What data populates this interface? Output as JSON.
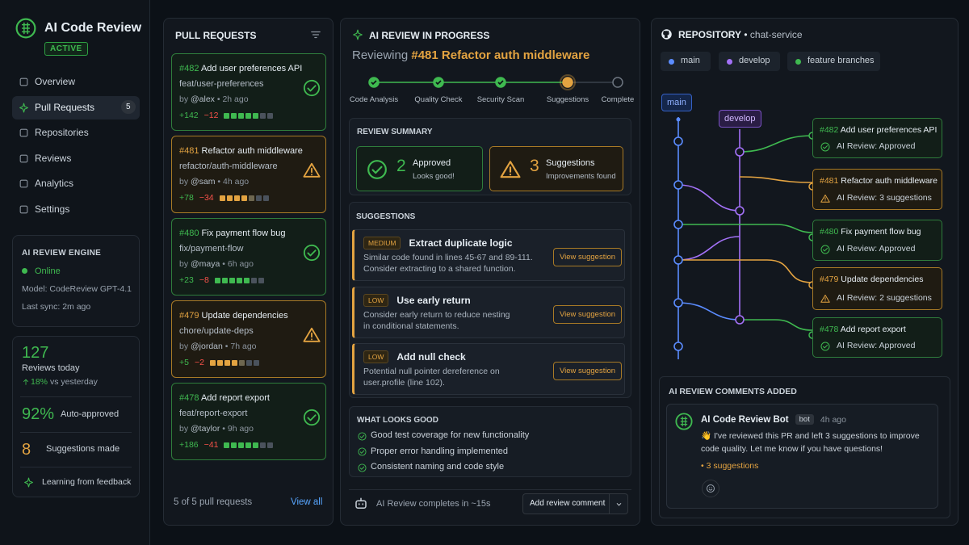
{
  "sidebar": {
    "brand": "AI Code Review",
    "badge": "ACTIVE",
    "nav": [
      {
        "label": "Overview"
      },
      {
        "label": "Pull Requests",
        "count": "5"
      },
      {
        "label": "Repositories"
      },
      {
        "label": "Reviews"
      },
      {
        "label": "Analytics"
      },
      {
        "label": "Settings"
      }
    ],
    "engine": {
      "title": "AI REVIEW ENGINE",
      "status": "Online",
      "model": "Model: CodeReview GPT-4.1",
      "sync": "Last sync: 2m ago"
    },
    "stats": {
      "reviews": "127",
      "reviews_label": "Reviews today",
      "trend_value": "18%",
      "trend_label": "vs yesterday",
      "auto": "92%",
      "auto_label": "Auto-approved",
      "suggestions": "8",
      "suggestions_label": "Suggestions made",
      "learning": "Learning from feedback"
    }
  },
  "pull_requests": {
    "title": "PULL REQUESTS",
    "by": "by",
    "items": [
      {
        "number": "#482",
        "title": "Add user preferences API",
        "branch": "feat/user-preferences",
        "author": "@alex",
        "time": "2h ago",
        "additions": "+142",
        "deletions": "−12",
        "icon": "check"
      },
      {
        "number": "#481",
        "title": "Refactor auth middleware",
        "branch": "refactor/auth-middleware",
        "author": "@sam",
        "time": "4h ago",
        "additions": "+78",
        "deletions": "−34",
        "icon": "warning"
      },
      {
        "number": "#480",
        "title": "Fix payment flow bug",
        "branch": "fix/payment-flow",
        "author": "@maya",
        "time": "6h ago",
        "additions": "+23",
        "deletions": "−8",
        "icon": "check"
      },
      {
        "number": "#479",
        "title": "Update dependencies",
        "branch": "chore/update-deps",
        "author": "@jordan",
        "time": "7h ago",
        "additions": "+5",
        "deletions": "−2",
        "icon": "warning"
      },
      {
        "number": "#478",
        "title": "Add report export",
        "branch": "feat/report-export",
        "author": "@taylor",
        "time": "9h ago",
        "additions": "+186",
        "deletions": "−41",
        "icon": "check"
      }
    ],
    "footer": "5 of 5 pull requests",
    "link": "View all"
  },
  "review": {
    "title": "AI REVIEW IN PROGRESS",
    "reviewing": "Reviewing",
    "number": "#481",
    "pr_title": "Refactor auth middleware",
    "steps": [
      {
        "label": "Code Analysis",
        "state": "done"
      },
      {
        "label": "Quality Check",
        "state": "done"
      },
      {
        "label": "Security Scan",
        "state": "done"
      },
      {
        "label": "Suggestions",
        "state": "current"
      },
      {
        "label": "Complete",
        "state": "todo"
      }
    ],
    "summary": {
      "title": "REVIEW SUMMARY",
      "cards": [
        {
          "count": "2",
          "label": "Approved",
          "sub": "Looks good!",
          "icon": "check"
        },
        {
          "count": "3",
          "label": "Suggestions",
          "sub": "Improvements found",
          "icon": "warning"
        }
      ]
    },
    "suggestions": {
      "title": "SUGGESTIONS",
      "button": "View suggestion",
      "items": [
        {
          "level": "MEDIUM",
          "title": "Extract duplicate logic",
          "lines": [
            "Similar code found in lines 45-67 and 89-111.",
            "Consider extracting to a shared function."
          ]
        },
        {
          "level": "LOW",
          "title": "Use early return",
          "lines": [
            "Consider early return to reduce nesting",
            "in conditional statements."
          ]
        },
        {
          "level": "LOW",
          "title": "Add null check",
          "lines": [
            "Potential null pointer dereference on",
            "user.profile (line 102)."
          ]
        }
      ]
    },
    "good": {
      "title": "WHAT LOOKS GOOD",
      "items": [
        "Good test coverage for new functionality",
        "Proper error handling implemented",
        "Consistent naming and code style"
      ]
    },
    "footer": {
      "status": "AI Review completes in ~15s",
      "button": "Add review comment"
    }
  },
  "repository": {
    "title": "REPOSITORY",
    "name": "chat-service",
    "branches": [
      {
        "name": "main",
        "color": "#5b8cff"
      },
      {
        "name": "develop",
        "color": "#a371f7"
      },
      {
        "name": "feature branches",
        "color": "#3fb950"
      }
    ],
    "cards": [
      {
        "number": "#482",
        "title": "Add user preferences API",
        "status": "AI Review: Approved",
        "icon": "check"
      },
      {
        "number": "#481",
        "title": "Refactor auth middleware",
        "status": "AI Review: 3 suggestions",
        "icon": "warning"
      },
      {
        "number": "#480",
        "title": "Fix payment flow bug",
        "status": "AI Review: Approved",
        "icon": "check"
      },
      {
        "number": "#479",
        "title": "Update dependencies",
        "status": "AI Review: 2 suggestions",
        "icon": "warning"
      },
      {
        "number": "#478",
        "title": "Add report export",
        "status": "AI Review: Approved",
        "icon": "check"
      }
    ]
  },
  "comments": {
    "title": "AI REVIEW COMMENTS ADDED",
    "author": "AI Code Review Bot",
    "tag": "bot",
    "time": "4h ago",
    "text": "👋 I've reviewed this PR and left 3 suggestions to improve code quality. Let me know if you have questions!",
    "link": "3 suggestions"
  }
}
